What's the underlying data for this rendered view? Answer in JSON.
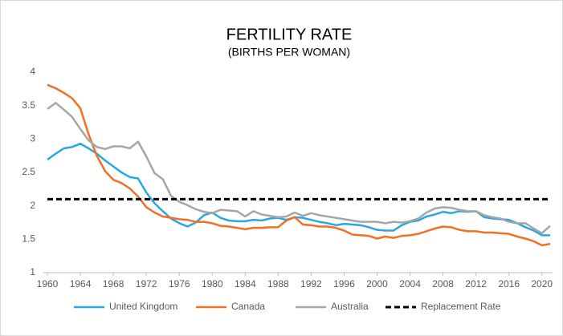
{
  "chart_data": {
    "type": "line",
    "title": "FERTILITY RATE",
    "subtitle": "(BIRTHS PER WOMAN)",
    "x": [
      1960,
      1961,
      1962,
      1963,
      1964,
      1965,
      1966,
      1967,
      1968,
      1969,
      1970,
      1971,
      1972,
      1973,
      1974,
      1975,
      1976,
      1977,
      1978,
      1979,
      1980,
      1981,
      1982,
      1983,
      1984,
      1985,
      1986,
      1987,
      1988,
      1989,
      1990,
      1991,
      1992,
      1993,
      1994,
      1995,
      1996,
      1997,
      1998,
      1999,
      2000,
      2001,
      2002,
      2003,
      2004,
      2005,
      2006,
      2007,
      2008,
      2009,
      2010,
      2011,
      2012,
      2013,
      2014,
      2015,
      2016,
      2017,
      2018,
      2019,
      2020,
      2021
    ],
    "series": [
      {
        "name": "United Kingdom",
        "color": "#29a8e0",
        "values": [
          2.69,
          2.78,
          2.86,
          2.88,
          2.93,
          2.86,
          2.78,
          2.68,
          2.59,
          2.5,
          2.43,
          2.41,
          2.2,
          2.04,
          1.92,
          1.81,
          1.74,
          1.69,
          1.75,
          1.86,
          1.9,
          1.82,
          1.78,
          1.77,
          1.77,
          1.79,
          1.78,
          1.81,
          1.82,
          1.79,
          1.83,
          1.82,
          1.79,
          1.76,
          1.74,
          1.71,
          1.73,
          1.72,
          1.71,
          1.68,
          1.64,
          1.63,
          1.63,
          1.71,
          1.76,
          1.78,
          1.84,
          1.87,
          1.91,
          1.89,
          1.92,
          1.91,
          1.92,
          1.83,
          1.81,
          1.8,
          1.79,
          1.74,
          1.68,
          1.63,
          1.56,
          1.56
        ]
      },
      {
        "name": "Canada",
        "color": "#f36f21",
        "values": [
          3.81,
          3.76,
          3.69,
          3.61,
          3.46,
          3.07,
          2.75,
          2.52,
          2.39,
          2.34,
          2.26,
          2.14,
          1.98,
          1.9,
          1.84,
          1.82,
          1.8,
          1.79,
          1.76,
          1.76,
          1.74,
          1.7,
          1.69,
          1.67,
          1.65,
          1.67,
          1.67,
          1.68,
          1.68,
          1.78,
          1.83,
          1.72,
          1.71,
          1.69,
          1.69,
          1.67,
          1.63,
          1.57,
          1.56,
          1.55,
          1.51,
          1.54,
          1.52,
          1.55,
          1.56,
          1.58,
          1.62,
          1.66,
          1.69,
          1.68,
          1.64,
          1.62,
          1.62,
          1.6,
          1.6,
          1.59,
          1.58,
          1.54,
          1.51,
          1.47,
          1.41,
          1.43
        ]
      },
      {
        "name": "Australia",
        "color": "#a6a6a6",
        "values": [
          3.45,
          3.54,
          3.44,
          3.33,
          3.15,
          2.98,
          2.88,
          2.85,
          2.89,
          2.89,
          2.86,
          2.96,
          2.74,
          2.49,
          2.4,
          2.15,
          2.06,
          2.01,
          1.95,
          1.91,
          1.89,
          1.94,
          1.93,
          1.92,
          1.84,
          1.92,
          1.87,
          1.85,
          1.83,
          1.84,
          1.9,
          1.85,
          1.89,
          1.86,
          1.84,
          1.82,
          1.8,
          1.78,
          1.76,
          1.76,
          1.76,
          1.74,
          1.76,
          1.75,
          1.77,
          1.81,
          1.9,
          1.96,
          1.98,
          1.97,
          1.94,
          1.92,
          1.92,
          1.86,
          1.83,
          1.81,
          1.76,
          1.74,
          1.74,
          1.66,
          1.59,
          1.7
        ]
      },
      {
        "name": "Replacement Rate",
        "color": "#000000",
        "dashed": true,
        "values": [
          2.1,
          2.1,
          2.1,
          2.1,
          2.1,
          2.1,
          2.1,
          2.1,
          2.1,
          2.1,
          2.1,
          2.1,
          2.1,
          2.1,
          2.1,
          2.1,
          2.1,
          2.1,
          2.1,
          2.1,
          2.1,
          2.1,
          2.1,
          2.1,
          2.1,
          2.1,
          2.1,
          2.1,
          2.1,
          2.1,
          2.1,
          2.1,
          2.1,
          2.1,
          2.1,
          2.1,
          2.1,
          2.1,
          2.1,
          2.1,
          2.1,
          2.1,
          2.1,
          2.1,
          2.1,
          2.1,
          2.1,
          2.1,
          2.1,
          2.1,
          2.1,
          2.1,
          2.1,
          2.1,
          2.1,
          2.1,
          2.1,
          2.1,
          2.1,
          2.1,
          2.1,
          2.1
        ]
      }
    ],
    "xlim": [
      1960,
      2021
    ],
    "xticks": [
      1960,
      1964,
      1968,
      1972,
      1976,
      1980,
      1984,
      1988,
      1992,
      1996,
      2000,
      2004,
      2008,
      2012,
      2016,
      2020
    ],
    "ylim": [
      1,
      4
    ],
    "yticks": [
      1,
      1.5,
      2,
      2.5,
      3,
      3.5,
      4
    ],
    "grid": false,
    "legend": "bottom"
  }
}
